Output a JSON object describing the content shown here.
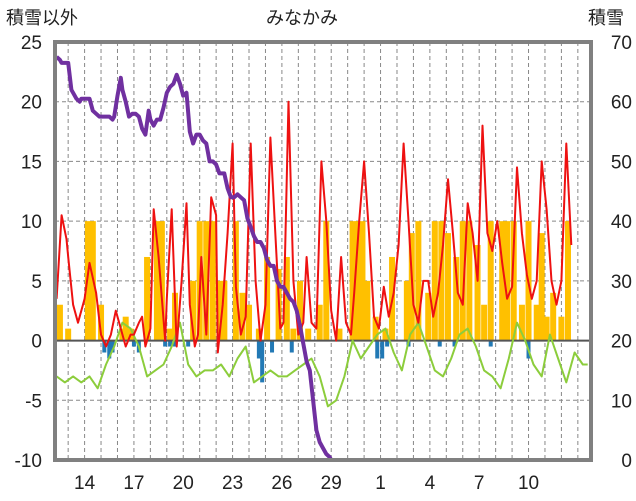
{
  "chart_data": {
    "type": "line",
    "title": "みなかみ",
    "left_axis_label": "積雪以外",
    "right_axis_label": "積雪",
    "left_ylim": [
      -10,
      25
    ],
    "left_yticks": [
      "25",
      "20",
      "15",
      "10",
      "5",
      "0",
      "-5",
      "-10"
    ],
    "right_ylim": [
      0,
      70
    ],
    "right_yticks": [
      "70",
      "60",
      "50",
      "40",
      "30",
      "20",
      "10",
      "0"
    ],
    "x_range_days": [
      12.2,
      44.8
    ],
    "x_ticks": [
      {
        "label": "14",
        "day": 14
      },
      {
        "label": "17",
        "day": 17
      },
      {
        "label": "20",
        "day": 20
      },
      {
        "label": "23",
        "day": 23
      },
      {
        "label": "26",
        "day": 26
      },
      {
        "label": "29",
        "day": 29
      },
      {
        "label": "1",
        "day": 32
      },
      {
        "label": "4",
        "day": 35
      },
      {
        "label": "7",
        "day": 38
      },
      {
        "label": "10",
        "day": 41
      }
    ],
    "grid": true,
    "colors": {
      "temperature_max": "#ee1111",
      "temperature_min": "#8ccd3c",
      "precipitation": "#ffc000",
      "sunshine": "#2279b5",
      "snow_depth": "#7030a0",
      "zero_line": "#555555",
      "frame": "#808080"
    },
    "series": [
      {
        "key": "temp_red",
        "axis": "left",
        "x": [
          12.3,
          12.6,
          12.9,
          13.0,
          13.3,
          13.6,
          14.0,
          14.3,
          14.7,
          15.0,
          15.3,
          15.6,
          15.9,
          16.2,
          16.5,
          16.8,
          17.0,
          17.3,
          17.5,
          17.7,
          18.0,
          18.2,
          18.5,
          18.9,
          19.0,
          19.3,
          19.6,
          19.9,
          20.2,
          20.4,
          20.7,
          20.9,
          21.1,
          21.4,
          21.7,
          22.0,
          22.1,
          22.4,
          22.7,
          23.0,
          23.2,
          23.5,
          23.8,
          24.1,
          24.4,
          24.7,
          25.0,
          25.3,
          25.6,
          25.9,
          26.1,
          26.4,
          26.7,
          27.0,
          27.3,
          27.5,
          27.8,
          28.1,
          28.4,
          28.7,
          29.0,
          29.3,
          29.6,
          29.9,
          30.2,
          30.4,
          30.7,
          31.0,
          31.3,
          31.6,
          31.9,
          32.2,
          32.5,
          32.8,
          33.1,
          33.4,
          33.7,
          34.0,
          34.3,
          34.6,
          34.9,
          35.2,
          35.5,
          35.8,
          36.1,
          36.4,
          36.7,
          37.0,
          37.3,
          37.6,
          37.9,
          38.2,
          38.5,
          38.8,
          39.1,
          39.4,
          39.7,
          40.0,
          40.3,
          40.6,
          40.9,
          41.2,
          41.5,
          41.8,
          42.1,
          42.4,
          42.7,
          43.0,
          43.3,
          43.6
        ],
        "y": [
          3.5,
          10.5,
          8.5,
          7.0,
          3.0,
          1.5,
          3.5,
          6.5,
          4.0,
          0.5,
          -0.5,
          0.5,
          2.5,
          1.0,
          -0.5,
          0.5,
          0.5,
          1.5,
          2.0,
          -0.5,
          1.0,
          11.0,
          7.0,
          0.0,
          3.5,
          11.0,
          -0.5,
          5.0,
          11.5,
          3.0,
          -0.5,
          0.5,
          7.0,
          0.5,
          12.0,
          10.5,
          -1.0,
          3.0,
          9.0,
          16.5,
          4.5,
          0.5,
          2.0,
          16.5,
          5.0,
          0.0,
          3.0,
          17.0,
          9.0,
          1.0,
          1.5,
          20.0,
          5.0,
          0.5,
          1.5,
          7.0,
          1.5,
          1.0,
          15.0,
          10.0,
          2.5,
          0.0,
          7.0,
          1.5,
          0.5,
          4.0,
          10.0,
          15.0,
          9.0,
          2.0,
          1.0,
          4.5,
          2.0,
          4.0,
          8.0,
          16.5,
          10.0,
          3.0,
          1.5,
          5.0,
          5.0,
          2.0,
          4.0,
          8.0,
          13.5,
          9.0,
          4.0,
          3.0,
          11.5,
          9.0,
          5.0,
          18.0,
          9.0,
          7.5,
          10.0,
          6.5,
          3.5,
          4.5,
          14.5,
          9.0,
          5.5,
          3.5,
          5.0,
          15.0,
          11.0,
          5.0,
          3.0,
          5.0,
          16.5,
          8.0
        ]
      },
      {
        "key": "temp_green",
        "axis": "left",
        "x": [
          12.3,
          12.8,
          13.3,
          13.8,
          14.3,
          14.8,
          15.3,
          15.8,
          16.3,
          16.8,
          17.3,
          17.8,
          18.3,
          18.8,
          19.3,
          19.8,
          20.3,
          20.8,
          21.3,
          21.8,
          22.3,
          22.8,
          23.3,
          23.8,
          24.3,
          24.8,
          25.3,
          25.8,
          26.3,
          26.8,
          27.3,
          27.8,
          28.3,
          28.8,
          29.3,
          29.8,
          30.3,
          30.8,
          31.3,
          31.8,
          32.3,
          32.8,
          33.3,
          33.8,
          34.3,
          34.8,
          35.3,
          35.8,
          36.3,
          36.8,
          37.3,
          37.8,
          38.3,
          38.8,
          39.3,
          39.8,
          40.3,
          40.8,
          41.3,
          41.8,
          42.3,
          42.8,
          43.3,
          43.8,
          44.3,
          44.6
        ],
        "y": [
          -3.0,
          -3.5,
          -3.0,
          -3.5,
          -3.0,
          -4.0,
          -2.0,
          -0.5,
          1.5,
          1.0,
          -0.5,
          -3.0,
          -2.5,
          -2.0,
          -0.5,
          1.5,
          -2.0,
          -3.0,
          -2.5,
          -2.5,
          -2.0,
          -3.0,
          -1.5,
          -0.5,
          -3.5,
          -3.0,
          -2.5,
          -3.0,
          -3.0,
          -2.5,
          -2.0,
          -1.5,
          -3.0,
          -5.5,
          -5.0,
          -3.0,
          0.0,
          -1.5,
          -0.5,
          0.5,
          1.0,
          -1.0,
          -2.5,
          0.5,
          1.5,
          -0.5,
          -2.5,
          -3.0,
          -1.5,
          0.5,
          1.0,
          -0.5,
          -2.5,
          -3.0,
          -4.0,
          -1.5,
          1.5,
          0.0,
          -2.0,
          -3.0,
          0.5,
          -1.5,
          -3.5,
          -1.0,
          -2.0,
          -2.0
        ]
      },
      {
        "key": "snow_depth",
        "axis": "right",
        "x": [
          12.3,
          12.5,
          12.6,
          12.8,
          13.0,
          13.2,
          13.3,
          13.5,
          13.7,
          13.8,
          14.0,
          14.3,
          14.5,
          14.7,
          14.9,
          15.1,
          15.3,
          15.5,
          15.7,
          15.8,
          16.0,
          16.2,
          16.3,
          16.5,
          16.7,
          16.9,
          17.1,
          17.3,
          17.5,
          17.7,
          17.9,
          18.0,
          18.2,
          18.4,
          18.6,
          18.8,
          19.0,
          19.2,
          19.4,
          19.6,
          19.8,
          20.0,
          20.2,
          20.4,
          20.6,
          20.8,
          21.0,
          21.2,
          21.4,
          21.6,
          21.8,
          22.0,
          22.2,
          22.5,
          22.7,
          22.9,
          23.1,
          23.3,
          23.5,
          23.7,
          23.9,
          24.1,
          24.3,
          24.5,
          24.7,
          24.9,
          25.1,
          25.3,
          25.5,
          25.7,
          25.9,
          26.1,
          26.3,
          26.5,
          26.7,
          26.9,
          27.1,
          27.3,
          27.5,
          27.7,
          27.9,
          28.1,
          28.3,
          28.5,
          28.7,
          28.9,
          29.0,
          29.5,
          30.0,
          31.0,
          32.0,
          33.0,
          34.0,
          35.0,
          36.0,
          37.0,
          38.0,
          39.0,
          40.0,
          41.0,
          42.0,
          43.0,
          44.0,
          44.7
        ],
        "y": [
          67.5,
          67.0,
          66.5,
          66.5,
          66.5,
          62.0,
          61.5,
          60.5,
          60.0,
          60.5,
          60.5,
          60.5,
          58.5,
          58.0,
          57.5,
          57.5,
          57.5,
          57.5,
          57.0,
          57.5,
          61.0,
          64.0,
          62.0,
          60.0,
          57.5,
          58.0,
          58.0,
          57.5,
          55.5,
          54.5,
          58.5,
          57.0,
          56.0,
          57.0,
          57.0,
          59.0,
          61.5,
          62.5,
          63.0,
          64.5,
          63.0,
          61.0,
          61.5,
          55.0,
          53.0,
          54.5,
          54.5,
          53.5,
          53.0,
          50.0,
          50.0,
          49.5,
          48.0,
          48.0,
          45.5,
          44.0,
          44.0,
          44.5,
          44.0,
          43.5,
          40.5,
          39.0,
          37.5,
          36.5,
          36.5,
          35.5,
          33.5,
          32.5,
          32.5,
          30.0,
          29.0,
          29.0,
          28.0,
          27.0,
          26.5,
          25.0,
          22.5,
          19.5,
          16.5,
          15.0,
          10.0,
          5.0,
          3.0,
          2.0,
          1.0,
          0.5,
          0.0,
          0.0,
          0.0,
          0.0,
          0.0,
          0.0,
          0.0,
          0.0,
          0.0,
          0.0,
          0.0,
          0.0,
          0.0,
          0.0,
          0.0,
          0.0,
          0.0,
          0.0
        ]
      },
      {
        "key": "precipitation",
        "axis": "left",
        "type": "bar",
        "x": [
          12.5,
          13.0,
          14.2,
          14.5,
          15.0,
          16.3,
          16.5,
          16.8,
          17.8,
          18.4,
          18.7,
          19.2,
          19.5,
          20.6,
          21.0,
          21.4,
          21.8,
          22.2,
          22.5,
          23.2,
          23.6,
          24.0,
          24.6,
          25.1,
          25.8,
          26.3,
          26.7,
          27.1,
          27.6,
          28.3,
          28.7,
          29.5,
          30.3,
          30.6,
          30.9,
          31.2,
          31.7,
          32.3,
          32.7,
          33.6,
          33.9,
          34.3,
          34.9,
          35.3,
          35.7,
          36.1,
          36.6,
          37.0,
          37.4,
          37.9,
          38.3,
          38.7,
          39.4,
          39.7,
          40.1,
          40.6,
          41.0,
          41.5,
          41.8,
          42.1,
          42.5,
          43.0,
          43.4
        ],
        "y": [
          3.0,
          1.0,
          10.0,
          10.0,
          3.0,
          1.0,
          2.0,
          1.0,
          7.0,
          10.0,
          10.0,
          1.0,
          4.0,
          5.0,
          10.0,
          10.0,
          10.0,
          5.0,
          5.0,
          10.0,
          4.0,
          3.0,
          1.0,
          7.0,
          6.0,
          7.0,
          1.0,
          5.0,
          1.0,
          3.0,
          10.0,
          1.0,
          10.0,
          10.0,
          10.0,
          5.0,
          2.0,
          1.0,
          7.0,
          5.0,
          9.0,
          10.0,
          4.0,
          10.0,
          10.0,
          9.0,
          7.0,
          10.0,
          10.0,
          8.0,
          3.0,
          10.0,
          10.0,
          10.0,
          10.0,
          3.0,
          10.0,
          3.0,
          9.0,
          2.0,
          4.0,
          2.0,
          10.0
        ]
      },
      {
        "key": "sunshine",
        "axis": "left",
        "type": "bar",
        "x": [
          15.2,
          15.5,
          15.7,
          17.0,
          17.3,
          18.9,
          19.2,
          19.5,
          20.3,
          24.6,
          24.8,
          25.4,
          26.6,
          31.8,
          32.1,
          32.4,
          33.7,
          35.6,
          36.5,
          38.7,
          41.0
        ],
        "y": [
          -1.0,
          -1.5,
          -1.0,
          -0.5,
          -1.0,
          -0.5,
          -0.5,
          -0.5,
          -0.5,
          -1.5,
          -3.5,
          -1.0,
          -1.0,
          -1.5,
          -1.5,
          -0.5,
          -0.5,
          -0.5,
          -0.5,
          -0.5,
          -1.5
        ]
      }
    ]
  }
}
